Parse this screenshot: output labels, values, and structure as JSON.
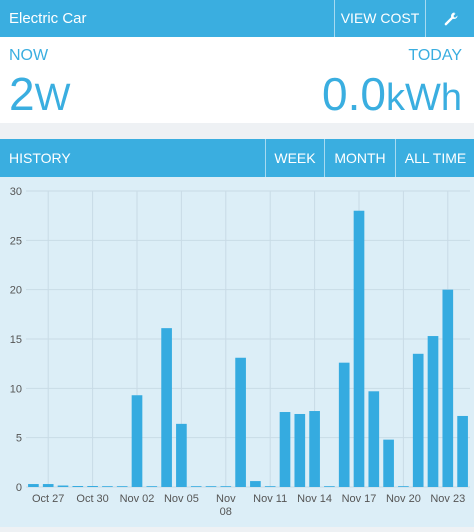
{
  "header": {
    "title": "Electric Car",
    "view_cost_label": "VIEW COST",
    "settings_icon": "wrench-icon"
  },
  "summary": {
    "now_label": "NOW",
    "now_value": "2",
    "now_unit": "W",
    "today_label": "TODAY",
    "today_value": "0.0",
    "today_unit": "kWh"
  },
  "history": {
    "title": "HISTORY",
    "tabs": [
      "WEEK",
      "MONTH",
      "ALL TIME"
    ]
  },
  "colors": {
    "accent": "#3aaee0",
    "chart_bg": "#dceef7",
    "bar": "#35abe0"
  },
  "chart_data": {
    "type": "bar",
    "ylim": [
      0,
      30
    ],
    "yticks": [
      0,
      5,
      10,
      15,
      20,
      25,
      30
    ],
    "categories": [
      "Oct 26",
      "Oct 27",
      "Oct 28",
      "Oct 29",
      "Oct 30",
      "Oct 31",
      "Nov 01",
      "Nov 02",
      "Nov 03",
      "Nov 04",
      "Nov 05",
      "Nov 06",
      "Nov 07",
      "Nov 08",
      "Nov 09",
      "Nov 10",
      "Nov 11",
      "Nov 12",
      "Nov 13",
      "Nov 14",
      "Nov 15",
      "Nov 16",
      "Nov 17",
      "Nov 18",
      "Nov 19",
      "Nov 20",
      "Nov 21",
      "Nov 22",
      "Nov 23",
      "Nov 24"
    ],
    "values": [
      0.3,
      0.3,
      0.15,
      0.1,
      0.1,
      0.05,
      0.05,
      9.3,
      0.05,
      16.1,
      6.4,
      0.05,
      0.05,
      0.05,
      13.1,
      0.6,
      0.05,
      7.6,
      7.4,
      7.7,
      0.05,
      12.6,
      28.0,
      9.7,
      4.8,
      0.05,
      13.5,
      15.3,
      20.0,
      7.2
    ],
    "xtick_labels": [
      {
        "index": 1,
        "label": "Oct 27"
      },
      {
        "index": 4,
        "label": "Oct 30"
      },
      {
        "index": 7,
        "label": "Nov 02"
      },
      {
        "index": 10,
        "label": "Nov 05"
      },
      {
        "index": 13,
        "label": "Nov 08"
      },
      {
        "index": 16,
        "label": "Nov 11"
      },
      {
        "index": 19,
        "label": "Nov 14"
      },
      {
        "index": 22,
        "label": "Nov 17"
      },
      {
        "index": 25,
        "label": "Nov 20"
      },
      {
        "index": 28,
        "label": "Nov 23"
      }
    ],
    "grid": true
  }
}
